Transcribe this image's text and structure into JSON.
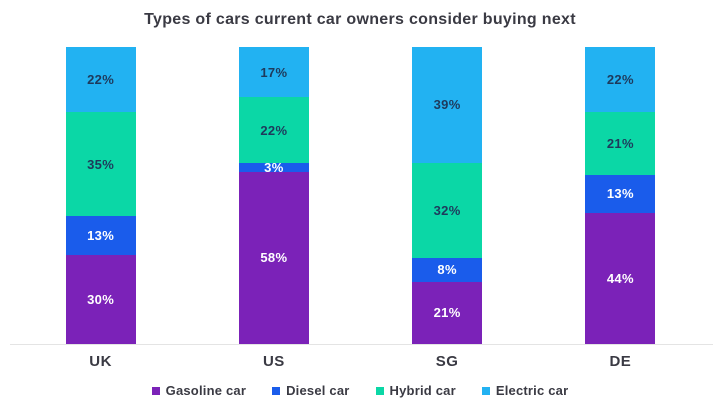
{
  "chart_data": {
    "type": "bar",
    "stacked": true,
    "orientation": "vertical",
    "title": "Types of cars current car owners consider buying next",
    "xlabel": "",
    "ylabel": "",
    "ylim": [
      0,
      100
    ],
    "grid": false,
    "legend_position": "bottom",
    "value_suffix": "%",
    "categories": [
      "UK",
      "US",
      "SG",
      "DE"
    ],
    "series": [
      {
        "name": "Gasoline car",
        "color": "#7b22b8",
        "label_color": "#ffffff",
        "values": [
          30,
          58,
          21,
          44
        ]
      },
      {
        "name": "Diesel car",
        "color": "#1a5ceb",
        "label_color": "#ffffff",
        "values": [
          13,
          3,
          8,
          13
        ]
      },
      {
        "name": "Hybrid car",
        "color": "#0bd7a6",
        "label_color": "#1e3a5c",
        "values": [
          35,
          22,
          32,
          21
        ]
      },
      {
        "name": "Electric car",
        "color": "#22b2f2",
        "label_color": "#1e3a5c",
        "values": [
          22,
          17,
          39,
          22
        ]
      }
    ],
    "colors": {
      "background": "#ffffff",
      "title_text": "#3a3a43",
      "category_text": "#3a3a43",
      "legend_text": "#3a3a43",
      "axis_line": "#e4e4e4"
    }
  }
}
